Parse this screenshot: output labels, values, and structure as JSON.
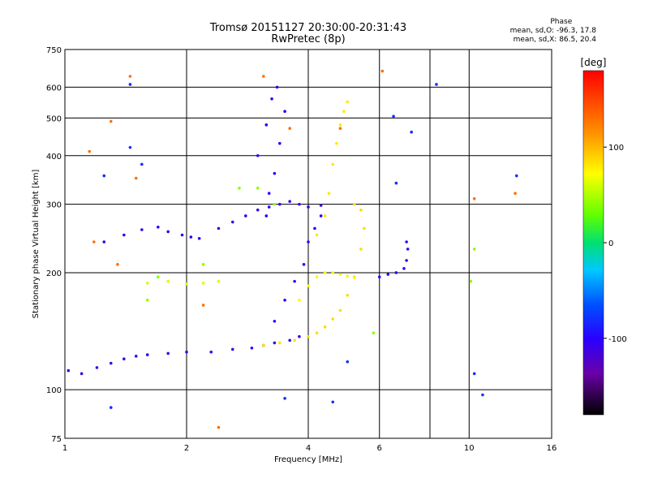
{
  "header": {
    "title_line1": "Tromsø 20151127 20:30:00-20:31:43",
    "title_line2": "RwPretec (8p)"
  },
  "stats": {
    "label": "Phase",
    "line_o": "mean, sd,O: -96.3, 17.8",
    "line_x": "mean, sd,X:  86.5, 20.4"
  },
  "colorbar": {
    "label": "[deg]",
    "ticks": [
      {
        "value": 100,
        "label": "100"
      },
      {
        "value": 0,
        "label": "0"
      },
      {
        "value": -100,
        "label": "-100"
      }
    ],
    "range": [
      -180,
      180
    ]
  },
  "chart_data": {
    "type": "scatter",
    "title": "Tromsø 20151127 20:30:00-20:31:43",
    "subtitle": "RwPretec (8p)",
    "xlabel": "Frequency [MHz]",
    "ylabel": "Stationary phase Virtual Height [km]",
    "xscale": "log",
    "yscale": "log",
    "xlim": [
      1,
      16
    ],
    "ylim": [
      75,
      750
    ],
    "x_ticks": [
      1,
      2,
      4,
      6,
      10,
      16
    ],
    "y_ticks": [
      75,
      100,
      200,
      300,
      400,
      500,
      600,
      750
    ],
    "x_grid": [
      2,
      4,
      6,
      8,
      10
    ],
    "y_grid": [
      100,
      200,
      300,
      400,
      500,
      600
    ],
    "grid": true,
    "color_encoding": "phase [deg]",
    "series": [
      {
        "phase": -110,
        "points": [
          [
            1.02,
            112
          ],
          [
            1.1,
            110
          ],
          [
            1.2,
            114
          ],
          [
            1.3,
            117
          ],
          [
            1.4,
            120
          ],
          [
            1.5,
            122
          ],
          [
            1.6,
            123
          ],
          [
            1.8,
            124
          ],
          [
            2.0,
            125
          ],
          [
            2.3,
            125
          ],
          [
            2.6,
            127
          ],
          [
            2.9,
            128
          ],
          [
            3.1,
            130
          ],
          [
            3.3,
            132
          ],
          [
            3.6,
            134
          ],
          [
            3.8,
            137
          ]
        ]
      },
      {
        "phase": -105,
        "points": [
          [
            1.25,
            240
          ],
          [
            1.4,
            250
          ],
          [
            1.55,
            258
          ],
          [
            1.7,
            262
          ],
          [
            1.8,
            255
          ],
          [
            1.95,
            250
          ],
          [
            2.05,
            247
          ],
          [
            2.15,
            245
          ]
        ]
      },
      {
        "phase": -100,
        "points": [
          [
            3.0,
            400
          ],
          [
            3.15,
            480
          ],
          [
            3.25,
            560
          ],
          [
            3.35,
            600
          ],
          [
            3.5,
            520
          ],
          [
            3.4,
            430
          ],
          [
            3.3,
            360
          ],
          [
            3.2,
            320
          ],
          [
            3.15,
            280
          ]
        ]
      },
      {
        "phase": -110,
        "points": [
          [
            2.4,
            260
          ],
          [
            2.6,
            270
          ],
          [
            2.8,
            280
          ],
          [
            3.0,
            290
          ],
          [
            3.2,
            295
          ],
          [
            3.4,
            300
          ],
          [
            3.6,
            305
          ],
          [
            3.8,
            300
          ],
          [
            4.0,
            295
          ],
          [
            4.3,
            298
          ]
        ]
      },
      {
        "phase": -100,
        "points": [
          [
            3.3,
            150
          ],
          [
            3.5,
            170
          ],
          [
            3.7,
            190
          ],
          [
            3.9,
            210
          ],
          [
            4.0,
            240
          ],
          [
            4.15,
            260
          ],
          [
            4.3,
            280
          ]
        ]
      },
      {
        "phase": -95,
        "points": [
          [
            6.0,
            195
          ],
          [
            6.3,
            198
          ],
          [
            6.6,
            200
          ],
          [
            6.9,
            205
          ],
          [
            7.0,
            215
          ],
          [
            7.05,
            230
          ],
          [
            7.0,
            240
          ]
        ]
      },
      {
        "phase": 60,
        "points": [
          [
            1.6,
            188
          ],
          [
            1.8,
            190
          ],
          [
            2.0,
            187
          ],
          [
            2.2,
            188
          ],
          [
            2.4,
            190
          ]
        ]
      },
      {
        "phase": 85,
        "points": [
          [
            3.1,
            130
          ],
          [
            3.4,
            132
          ],
          [
            3.7,
            134
          ],
          [
            4.0,
            137
          ],
          [
            4.2,
            140
          ],
          [
            4.4,
            145
          ],
          [
            4.6,
            152
          ],
          [
            4.8,
            160
          ],
          [
            5.0,
            175
          ],
          [
            5.2,
            195
          ],
          [
            5.4,
            230
          ],
          [
            5.5,
            260
          ],
          [
            5.4,
            290
          ],
          [
            5.2,
            300
          ]
        ]
      },
      {
        "phase": 80,
        "points": [
          [
            4.2,
            250
          ],
          [
            4.4,
            280
          ],
          [
            4.5,
            320
          ],
          [
            4.6,
            380
          ],
          [
            4.7,
            430
          ],
          [
            4.8,
            480
          ],
          [
            4.9,
            520
          ],
          [
            5.0,
            550
          ]
        ]
      },
      {
        "phase": 75,
        "points": [
          [
            3.8,
            170
          ],
          [
            4.0,
            185
          ],
          [
            4.2,
            195
          ],
          [
            4.4,
            200
          ],
          [
            4.6,
            200
          ],
          [
            4.8,
            198
          ],
          [
            5.0,
            196
          ],
          [
            5.2,
            194
          ]
        ]
      },
      {
        "phase": 130,
        "points": [
          [
            1.15,
            410
          ],
          [
            1.3,
            490
          ],
          [
            1.45,
            640
          ],
          [
            3.1,
            640
          ],
          [
            3.6,
            470
          ],
          [
            4.8,
            470
          ],
          [
            6.1,
            660
          ],
          [
            13.0,
            320
          ],
          [
            10.3,
            310
          ],
          [
            2.4,
            80
          ],
          [
            1.35,
            210
          ],
          [
            1.18,
            240
          ],
          [
            1.5,
            350
          ],
          [
            2.2,
            165
          ]
        ]
      },
      {
        "phase": 40,
        "points": [
          [
            1.7,
            195
          ],
          [
            2.2,
            210
          ],
          [
            2.7,
            330
          ],
          [
            3.0,
            330
          ],
          [
            3.3,
            300
          ],
          [
            5.8,
            140
          ],
          [
            10.1,
            190
          ],
          [
            10.3,
            230
          ],
          [
            1.6,
            170
          ]
        ]
      },
      {
        "phase": -80,
        "points": [
          [
            1.3,
            90
          ],
          [
            3.5,
            95
          ],
          [
            4.6,
            93
          ],
          [
            5.0,
            118
          ],
          [
            6.5,
            505
          ],
          [
            7.2,
            460
          ],
          [
            6.6,
            340
          ],
          [
            8.3,
            610
          ],
          [
            10.3,
            110
          ],
          [
            10.8,
            97
          ],
          [
            13.1,
            355
          ],
          [
            1.45,
            610
          ],
          [
            1.55,
            380
          ],
          [
            1.25,
            355
          ],
          [
            1.45,
            420
          ]
        ]
      }
    ]
  }
}
